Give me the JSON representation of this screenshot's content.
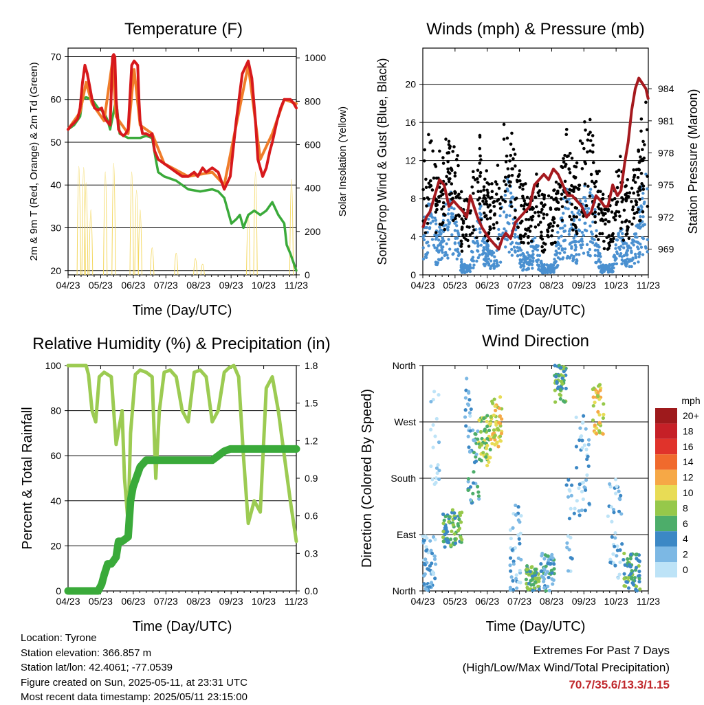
{
  "chart_data": [
    {
      "type": "line",
      "title": "Temperature (F)",
      "xlabel": "Time (Day/UTC)",
      "ylabel": "2m & 9m T (Red, Orange) & 2m Td (Green)",
      "y2label": "Solar Insolation (Yellow)",
      "x_ticks": [
        "04/23",
        "05/23",
        "06/23",
        "07/23",
        "08/23",
        "09/23",
        "10/23",
        "11/23"
      ],
      "ylim": [
        19,
        72
      ],
      "y_ticks": [
        20,
        30,
        40,
        50,
        60,
        70
      ],
      "y2lim": [
        0,
        1045
      ],
      "y2_ticks": [
        0,
        200,
        400,
        600,
        800,
        1000
      ],
      "grid": "horizontal",
      "series": [
        {
          "color": "#d7191c",
          "x": [
            0,
            0.3,
            0.5,
            0.8,
            1,
            1.2,
            1.4,
            1.6,
            1.8,
            2,
            2.2,
            2.5,
            2.8,
            3,
            3.2,
            3.5,
            3.7,
            3.8,
            3.9,
            4,
            4.2,
            4.4,
            4.6,
            4.8,
            5,
            5.3,
            5.5,
            5.8,
            5.9,
            6,
            6.2,
            6.5,
            6.8,
            7,
            7.2,
            7.5,
            8,
            8.5,
            9,
            9.5,
            10,
            10.5,
            10.8,
            11.2,
            11.5,
            12,
            12.5,
            13,
            13.5,
            14,
            14.5,
            15,
            15.3,
            15.6,
            15.8,
            16.2,
            16.5,
            16.8,
            17,
            17.4,
            17.7,
            18,
            18.5,
            18.8,
            19
          ],
          "y": [
            53,
            54,
            54.5,
            55.5,
            58,
            64,
            68,
            66,
            63,
            60,
            58,
            57.5,
            58,
            56,
            55,
            54,
            70,
            70.5,
            70,
            60,
            53,
            52,
            51.5,
            52,
            53,
            68,
            69,
            68,
            60,
            55,
            52,
            52,
            51.5,
            52,
            48,
            46,
            45,
            44,
            43,
            42,
            42,
            43,
            42,
            44,
            43,
            44,
            43,
            39,
            42,
            55,
            66,
            69,
            65,
            55,
            46,
            42,
            44,
            48,
            50,
            55,
            58,
            60,
            60,
            59,
            58
          ]
        },
        {
          "color": "#f07d2a",
          "x": [
            0,
            1,
            1.5,
            2,
            3,
            3.7,
            4,
            5,
            5.5,
            6,
            7,
            8,
            10,
            12,
            13,
            14,
            15,
            16,
            17,
            18,
            19
          ],
          "y": [
            53,
            57,
            64,
            59,
            55,
            69,
            56,
            52,
            67,
            54,
            52,
            45,
            42,
            43,
            40,
            54,
            68,
            46,
            52,
            60,
            59
          ]
        },
        {
          "color": "#3aaa3a",
          "x": [
            0,
            0.5,
            1,
            1.2,
            1.5,
            2,
            2.5,
            3,
            3.3,
            3.5,
            4,
            4.3,
            5,
            6,
            6.5,
            7,
            7.3,
            7.5,
            8,
            9,
            10,
            11,
            12,
            12.5,
            13,
            13.3,
            13.6,
            14,
            14.3,
            14.6,
            15,
            15.5,
            16,
            16.5,
            17,
            17.5,
            18,
            18.2,
            18.5,
            19
          ],
          "y": [
            53,
            54,
            56,
            60,
            60.5,
            60,
            58,
            57,
            55,
            53,
            60,
            52,
            51,
            51,
            51.5,
            51,
            46,
            43,
            42,
            41,
            39,
            38.5,
            39,
            38.5,
            37,
            34,
            31,
            32,
            33,
            30,
            33,
            34,
            33,
            34,
            36,
            33,
            31,
            26,
            24,
            20
          ]
        }
      ],
      "solar_peak_positions": [
        0.9,
        1.3,
        1.5,
        1.9,
        3.1,
        3.8,
        5.3,
        5.7,
        6.0,
        7.0,
        9.0,
        10.6,
        11.2,
        15.0,
        15.6,
        18.6
      ],
      "solar_peak_values": [
        1000,
        990,
        850,
        600,
        950,
        1030,
        950,
        780,
        600,
        250,
        200,
        150,
        100,
        550,
        950,
        880
      ]
    },
    {
      "type": "scatter",
      "title": "Winds (mph) & Pressure (mb)",
      "xlabel": "Time (Day/UTC)",
      "ylabel": "Sonic/Prop Wind & Gust (Blue, Black)",
      "y2label": "Station Pressure (Maroon)",
      "x_ticks": [
        "04/23",
        "05/23",
        "06/23",
        "07/23",
        "08/23",
        "09/23",
        "10/23",
        "11/23"
      ],
      "ylim": [
        0,
        23.8
      ],
      "y_ticks": [
        0,
        4,
        8,
        12,
        16,
        20
      ],
      "y2lim": [
        966.6,
        987.8
      ],
      "y2_ticks": [
        969,
        972,
        975,
        978,
        981,
        984
      ],
      "grid": "horizontal",
      "gust_color": "#000000",
      "wind_color": "#4a90d0",
      "pressure": {
        "color": "#a5191e",
        "x": [
          0,
          0.3,
          0.6,
          1,
          1.4,
          1.8,
          2.0,
          2.2,
          2.6,
          3.0,
          3.4,
          3.7,
          4.0,
          4.6,
          5.0,
          5.6,
          6.0,
          6.4,
          6.7,
          7.0,
          7.4,
          7.8,
          8.2,
          8.6,
          9.0,
          9.4,
          9.8,
          10.2,
          10.6,
          11.0,
          11.4,
          11.8,
          12.2,
          12.6,
          13.0,
          13.4,
          13.8,
          14.2,
          14.6,
          15.0,
          15.3,
          15.6,
          16.0,
          16.4,
          16.7,
          17.0,
          17.3,
          17.6,
          17.9,
          18.2,
          18.5,
          18.8,
          19
        ],
        "y": [
          971,
          972,
          972.5,
          974,
          975.5,
          975,
          974,
          973,
          973.5,
          973,
          972.5,
          972,
          974,
          972,
          971,
          970,
          969.5,
          969,
          970,
          970.5,
          970,
          971.5,
          972,
          972.5,
          973,
          975,
          975.5,
          976,
          975.5,
          976.5,
          976,
          975,
          974,
          974,
          973.5,
          973,
          972,
          972.5,
          974,
          973.5,
          973,
          973,
          975,
          974,
          974.5,
          977,
          979,
          982,
          984,
          985,
          984.5,
          984,
          983
        ]
      }
    },
    {
      "type": "line",
      "title": "Relative Humidity (%) & Precipitation (in)",
      "xlabel": "Time (Day/UTC)",
      "ylabel": "Percent & Total Rainfall",
      "x_ticks": [
        "04/23",
        "05/23",
        "06/23",
        "07/23",
        "08/23",
        "09/23",
        "10/23",
        "11/23"
      ],
      "ylim": [
        0,
        100
      ],
      "y_ticks": [
        0,
        20,
        40,
        60,
        80,
        100
      ],
      "y2lim": [
        0,
        1.8
      ],
      "y2_ticks": [
        "0.0",
        "0.3",
        "0.6",
        "0.9",
        "1.2",
        "1.5",
        "1.8"
      ],
      "grid": "horizontal",
      "series": [
        {
          "color": "#9ccb52",
          "x": [
            0,
            1.5,
            1.7,
            2.0,
            2.3,
            2.6,
            3.0,
            3.6,
            4.0,
            4.5,
            4.7,
            5.0,
            5.2,
            5.6,
            6.0,
            6.5,
            7.0,
            7.3,
            7.6,
            8.0,
            8.5,
            9.0,
            9.5,
            10.0,
            10.5,
            11.0,
            11.5,
            12.0,
            12.5,
            13.0,
            13.4,
            13.8,
            14.2,
            14.6,
            15.0,
            15.5,
            16.0,
            16.5,
            17.0,
            17.5,
            18.0,
            18.5,
            19.0
          ],
          "y": [
            100,
            100,
            96,
            80,
            75,
            95,
            97,
            95,
            65,
            80,
            50,
            30,
            70,
            96,
            98,
            97,
            95,
            50,
            80,
            97,
            98,
            95,
            80,
            75,
            97,
            98,
            95,
            75,
            80,
            97,
            99,
            100,
            95,
            60,
            30,
            40,
            35,
            90,
            95,
            80,
            60,
            40,
            22
          ]
        },
        {
          "color": "#3aaa3a",
          "x": [
            0,
            2.5,
            2.8,
            3.0,
            3.3,
            3.6,
            4.0,
            4.2,
            4.5,
            5.0,
            5.2,
            5.4,
            5.8,
            6.0,
            6.5,
            7.0,
            9.0,
            10.0,
            12.0,
            13.0,
            13.5,
            19.0
          ],
          "y": [
            0,
            0,
            3,
            7,
            12,
            12,
            15,
            22,
            22,
            24,
            40,
            46,
            52,
            55,
            58,
            58,
            58,
            58,
            58,
            62,
            63,
            63
          ]
        }
      ]
    },
    {
      "type": "scatter",
      "title": "Wind Direction",
      "xlabel": "Time (Day/UTC)",
      "ylabel": "Direction (Colored By Speed)",
      "x_ticks": [
        "04/23",
        "05/23",
        "06/23",
        "07/23",
        "08/23",
        "09/23",
        "10/23",
        "11/23"
      ],
      "y_ticks": [
        "North",
        "East",
        "South",
        "West",
        "North"
      ],
      "ylim": [
        0,
        360
      ],
      "grid": "horizontal",
      "legend_title": "mph",
      "legend_labels": [
        "20+",
        "18",
        "16",
        "14",
        "12",
        "10",
        "8",
        "6",
        "4",
        "2",
        "0"
      ],
      "legend_colors": [
        "#9e1a1c",
        "#c62027",
        "#e0332b",
        "#f06a2d",
        "#f6a846",
        "#e8dc55",
        "#96c84a",
        "#4dad6a",
        "#3c88c5",
        "#7cb8e4",
        "#bde3f7"
      ],
      "legend_placement": "right"
    }
  ],
  "footer": {
    "location": "Location: Tyrone",
    "elevation": "Station elevation: 366.857 m",
    "latlon": "Station lat/lon: 42.4061; -77.0539",
    "created": "Figure created on Sun, 2025-05-11, at 23:31 UTC",
    "recent": "Most recent data timestamp: 2025/05/11 23:15:00"
  },
  "extremes": {
    "title": "Extremes For Past 7 Days",
    "subtitle": "(High/Low/Max Wind/Total Precipitation)",
    "values": "70.7/35.6/13.3/1.15"
  }
}
